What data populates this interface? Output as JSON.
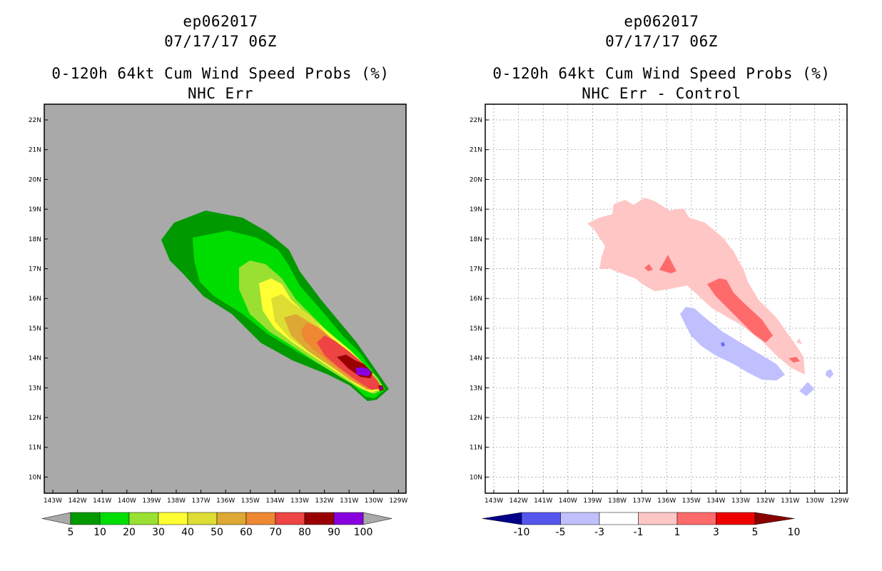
{
  "left_panel": {
    "storm_id": "ep062017",
    "datetime": "07/17/17 06Z",
    "product": "0-120h 64kt Cum Wind Speed Probs (%)",
    "subtitle": "NHC Err",
    "colorbar_labels": [
      "5",
      "10",
      "20",
      "30",
      "40",
      "50",
      "60",
      "70",
      "80",
      "90",
      "100"
    ],
    "colorbar_colors": [
      "#009900",
      "#00dd00",
      "#99e033",
      "#ffff33",
      "#dddd33",
      "#dda833",
      "#ee8833",
      "#ee4444",
      "#990000",
      "#8800dd"
    ],
    "background_color": "#a9a9a9"
  },
  "right_panel": {
    "storm_id": "ep062017",
    "datetime": "07/17/17 06Z",
    "product": "0-120h 64kt Cum Wind Speed Probs (%)",
    "subtitle": "NHC Err - Control",
    "colorbar_labels": [
      "-10",
      "-5",
      "-3",
      "-1",
      "1",
      "3",
      "5",
      "10"
    ],
    "colorbar_colors": [
      "#0000cc",
      "#5555ee",
      "#c0c0ff",
      "#ffffff",
      "#ffc6c6",
      "#ff6b6b",
      "#ee0000",
      "#880000"
    ],
    "end_colors": [
      "#00008b",
      "#880000"
    ]
  },
  "map_axes": {
    "lat_labels": [
      "22N",
      "21N",
      "20N",
      "19N",
      "18N",
      "17N",
      "16N",
      "15N",
      "14N",
      "13N",
      "12N",
      "11N",
      "10N"
    ],
    "lon_labels": [
      "143W",
      "142W",
      "141W",
      "140W",
      "139W",
      "138W",
      "137W",
      "136W",
      "135W",
      "134W",
      "133W",
      "132W",
      "131W",
      "130W",
      "129W"
    ]
  }
}
